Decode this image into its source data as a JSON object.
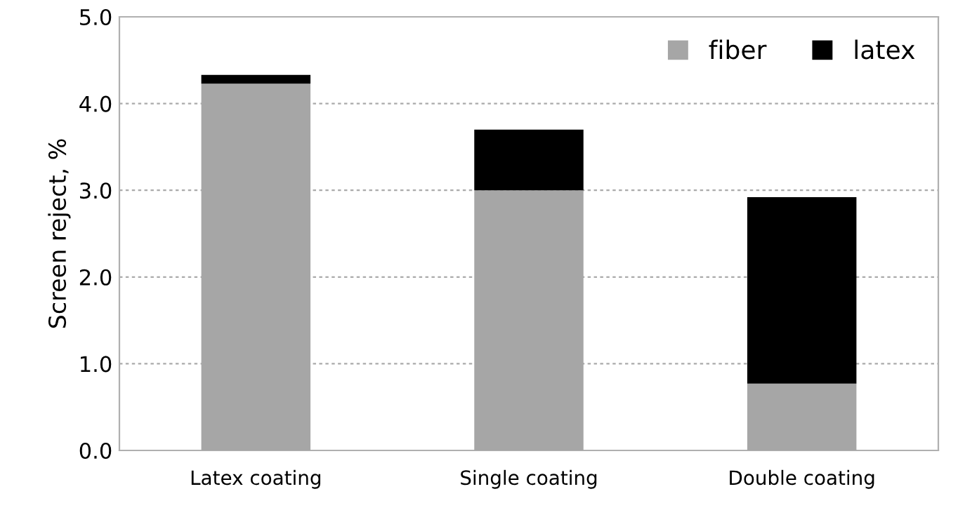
{
  "chart_data": {
    "type": "bar",
    "stacked": true,
    "categories": [
      "Latex coating",
      "Single coating",
      "Double coating"
    ],
    "series": [
      {
        "name": "fiber",
        "color": "#a6a6a6",
        "values": [
          4.23,
          3.0,
          0.77
        ]
      },
      {
        "name": "latex",
        "color": "#000000",
        "values": [
          0.1,
          0.7,
          2.15
        ]
      }
    ],
    "ylabel": "Screen reject, %",
    "ylim": [
      0,
      5
    ],
    "yticks": [
      {
        "value": 0,
        "label": "0.0"
      },
      {
        "value": 1,
        "label": "1.0"
      },
      {
        "value": 2,
        "label": "2.0"
      },
      {
        "value": 3,
        "label": "3.0"
      },
      {
        "value": 4,
        "label": "4.0"
      },
      {
        "value": 5,
        "label": "5.0"
      }
    ],
    "grid": "y",
    "legend": "top right"
  }
}
